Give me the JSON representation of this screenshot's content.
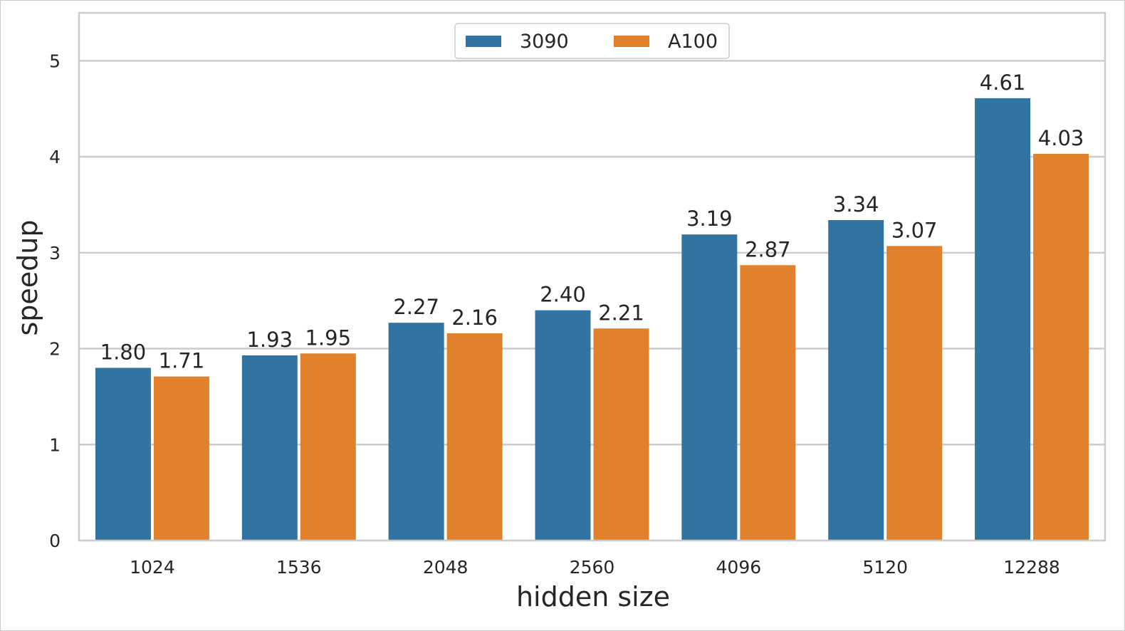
{
  "chart_data": {
    "type": "bar",
    "title": "",
    "xlabel": "hidden size",
    "ylabel": "speedup",
    "categories": [
      "1024",
      "1536",
      "2048",
      "2560",
      "4096",
      "5120",
      "12288"
    ],
    "series": [
      {
        "name": "3090",
        "color": "#3274a1",
        "values": [
          1.8,
          1.93,
          2.27,
          2.4,
          3.19,
          3.34,
          4.61
        ],
        "labels": [
          "1.80",
          "1.93",
          "2.27",
          "2.40",
          "3.19",
          "3.34",
          "4.61"
        ]
      },
      {
        "name": "A100",
        "color": "#e1812c",
        "values": [
          1.71,
          1.95,
          2.16,
          2.21,
          2.87,
          3.07,
          4.03
        ],
        "labels": [
          "1.71",
          "1.95",
          "2.16",
          "2.21",
          "2.87",
          "3.07",
          "4.03"
        ]
      }
    ],
    "ylim": [
      0,
      5.5
    ],
    "yticks": [
      "0",
      "1",
      "2",
      "3",
      "4",
      "5"
    ],
    "grid": true,
    "legend_position": "top-center"
  }
}
